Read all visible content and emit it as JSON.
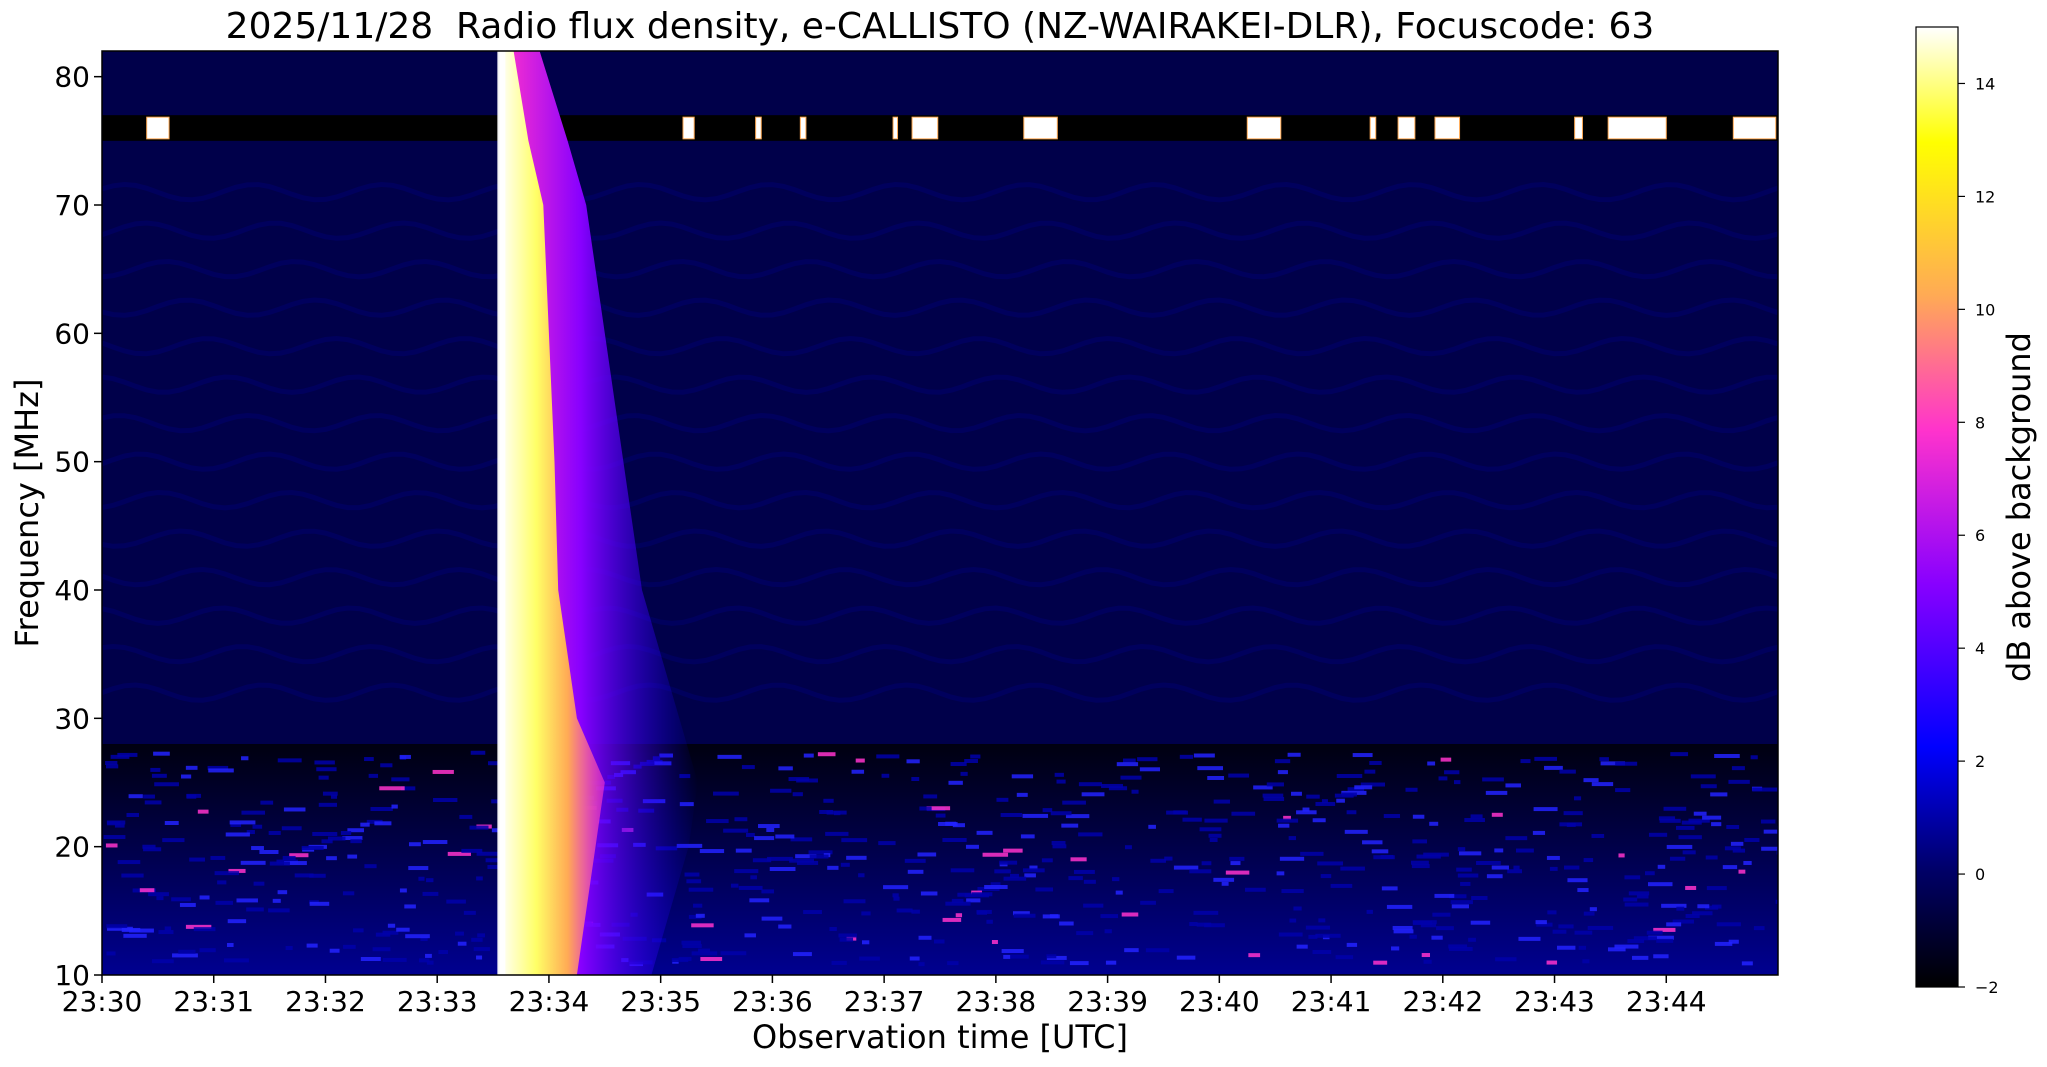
{
  "chart_data": {
    "type": "heatmap",
    "title": "2025/11/28  Radio flux density, e-CALLISTO (NZ-WAIRAKEI-DLR), Focuscode: 63",
    "xlabel": "Observation time [UTC]",
    "ylabel": "Frequency [MHz]",
    "x_ticks": [
      "23:30",
      "23:31",
      "23:32",
      "23:33",
      "23:34",
      "23:35",
      "23:36",
      "23:37",
      "23:38",
      "23:39",
      "23:40",
      "23:41",
      "23:42",
      "23:43",
      "23:44"
    ],
    "x_range": [
      "23:30:00",
      "23:44:59"
    ],
    "y_ticks": [
      10,
      20,
      30,
      40,
      50,
      60,
      70,
      80
    ],
    "ylim": [
      10,
      82
    ],
    "colorbar": {
      "label": "dB above background",
      "ticks": [
        -2,
        0,
        2,
        4,
        6,
        8,
        10,
        12,
        14
      ],
      "range": [
        -2,
        15
      ],
      "colormap": "gnuplot2",
      "colors": [
        "#000000",
        "#0000ff",
        "#8800ff",
        "#ff33cc",
        "#ffaa55",
        "#ffff00",
        "#ffffff"
      ]
    },
    "features": {
      "burst_onset_time": "23:33:35",
      "burst_peak_frequency_range_mhz": [
        10,
        82
      ],
      "burst_peak_db": 15,
      "interference_band_mhz": [
        75,
        77
      ],
      "background_level_db": 0
    }
  }
}
